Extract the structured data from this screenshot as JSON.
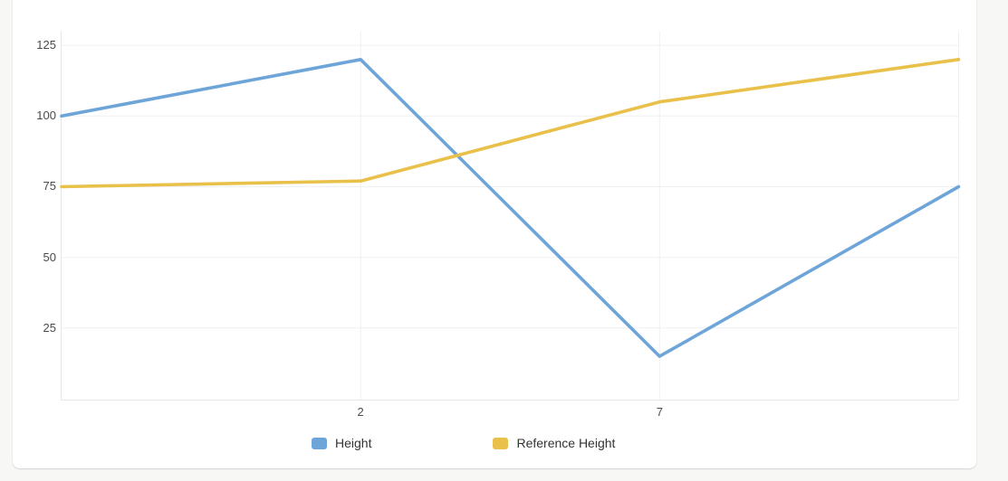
{
  "colors": {
    "page_background": "#f7f7f5",
    "card_background": "#ffffff",
    "grid": "#eef0f2",
    "axis_border": "#e4e6e9",
    "tick_text": "#4a4a4a",
    "legend_text": "#333333",
    "series_blue": "#6ea5d8",
    "series_yellow": "#e8c04a"
  },
  "chart_data": {
    "type": "line",
    "categories": [
      "",
      "2",
      "7",
      ""
    ],
    "series": [
      {
        "name": "Height",
        "color": "#6ea5d8",
        "values": [
          100,
          120,
          15,
          75
        ]
      },
      {
        "name": "Reference Height",
        "color": "#e8c04a",
        "values": [
          75,
          77,
          105,
          120
        ]
      }
    ],
    "title": "",
    "xlabel": "",
    "ylabel": "",
    "y_ticks": [
      25,
      50,
      75,
      100,
      125
    ],
    "ylim": [
      0,
      130
    ],
    "visible_x_tick_labels": [
      "2",
      "7"
    ],
    "grid": true,
    "legend_position": "bottom"
  },
  "legend": {
    "items": [
      {
        "label": "Height",
        "color": "#6ea5d8"
      },
      {
        "label": "Reference Height",
        "color": "#e8c04a"
      }
    ]
  }
}
